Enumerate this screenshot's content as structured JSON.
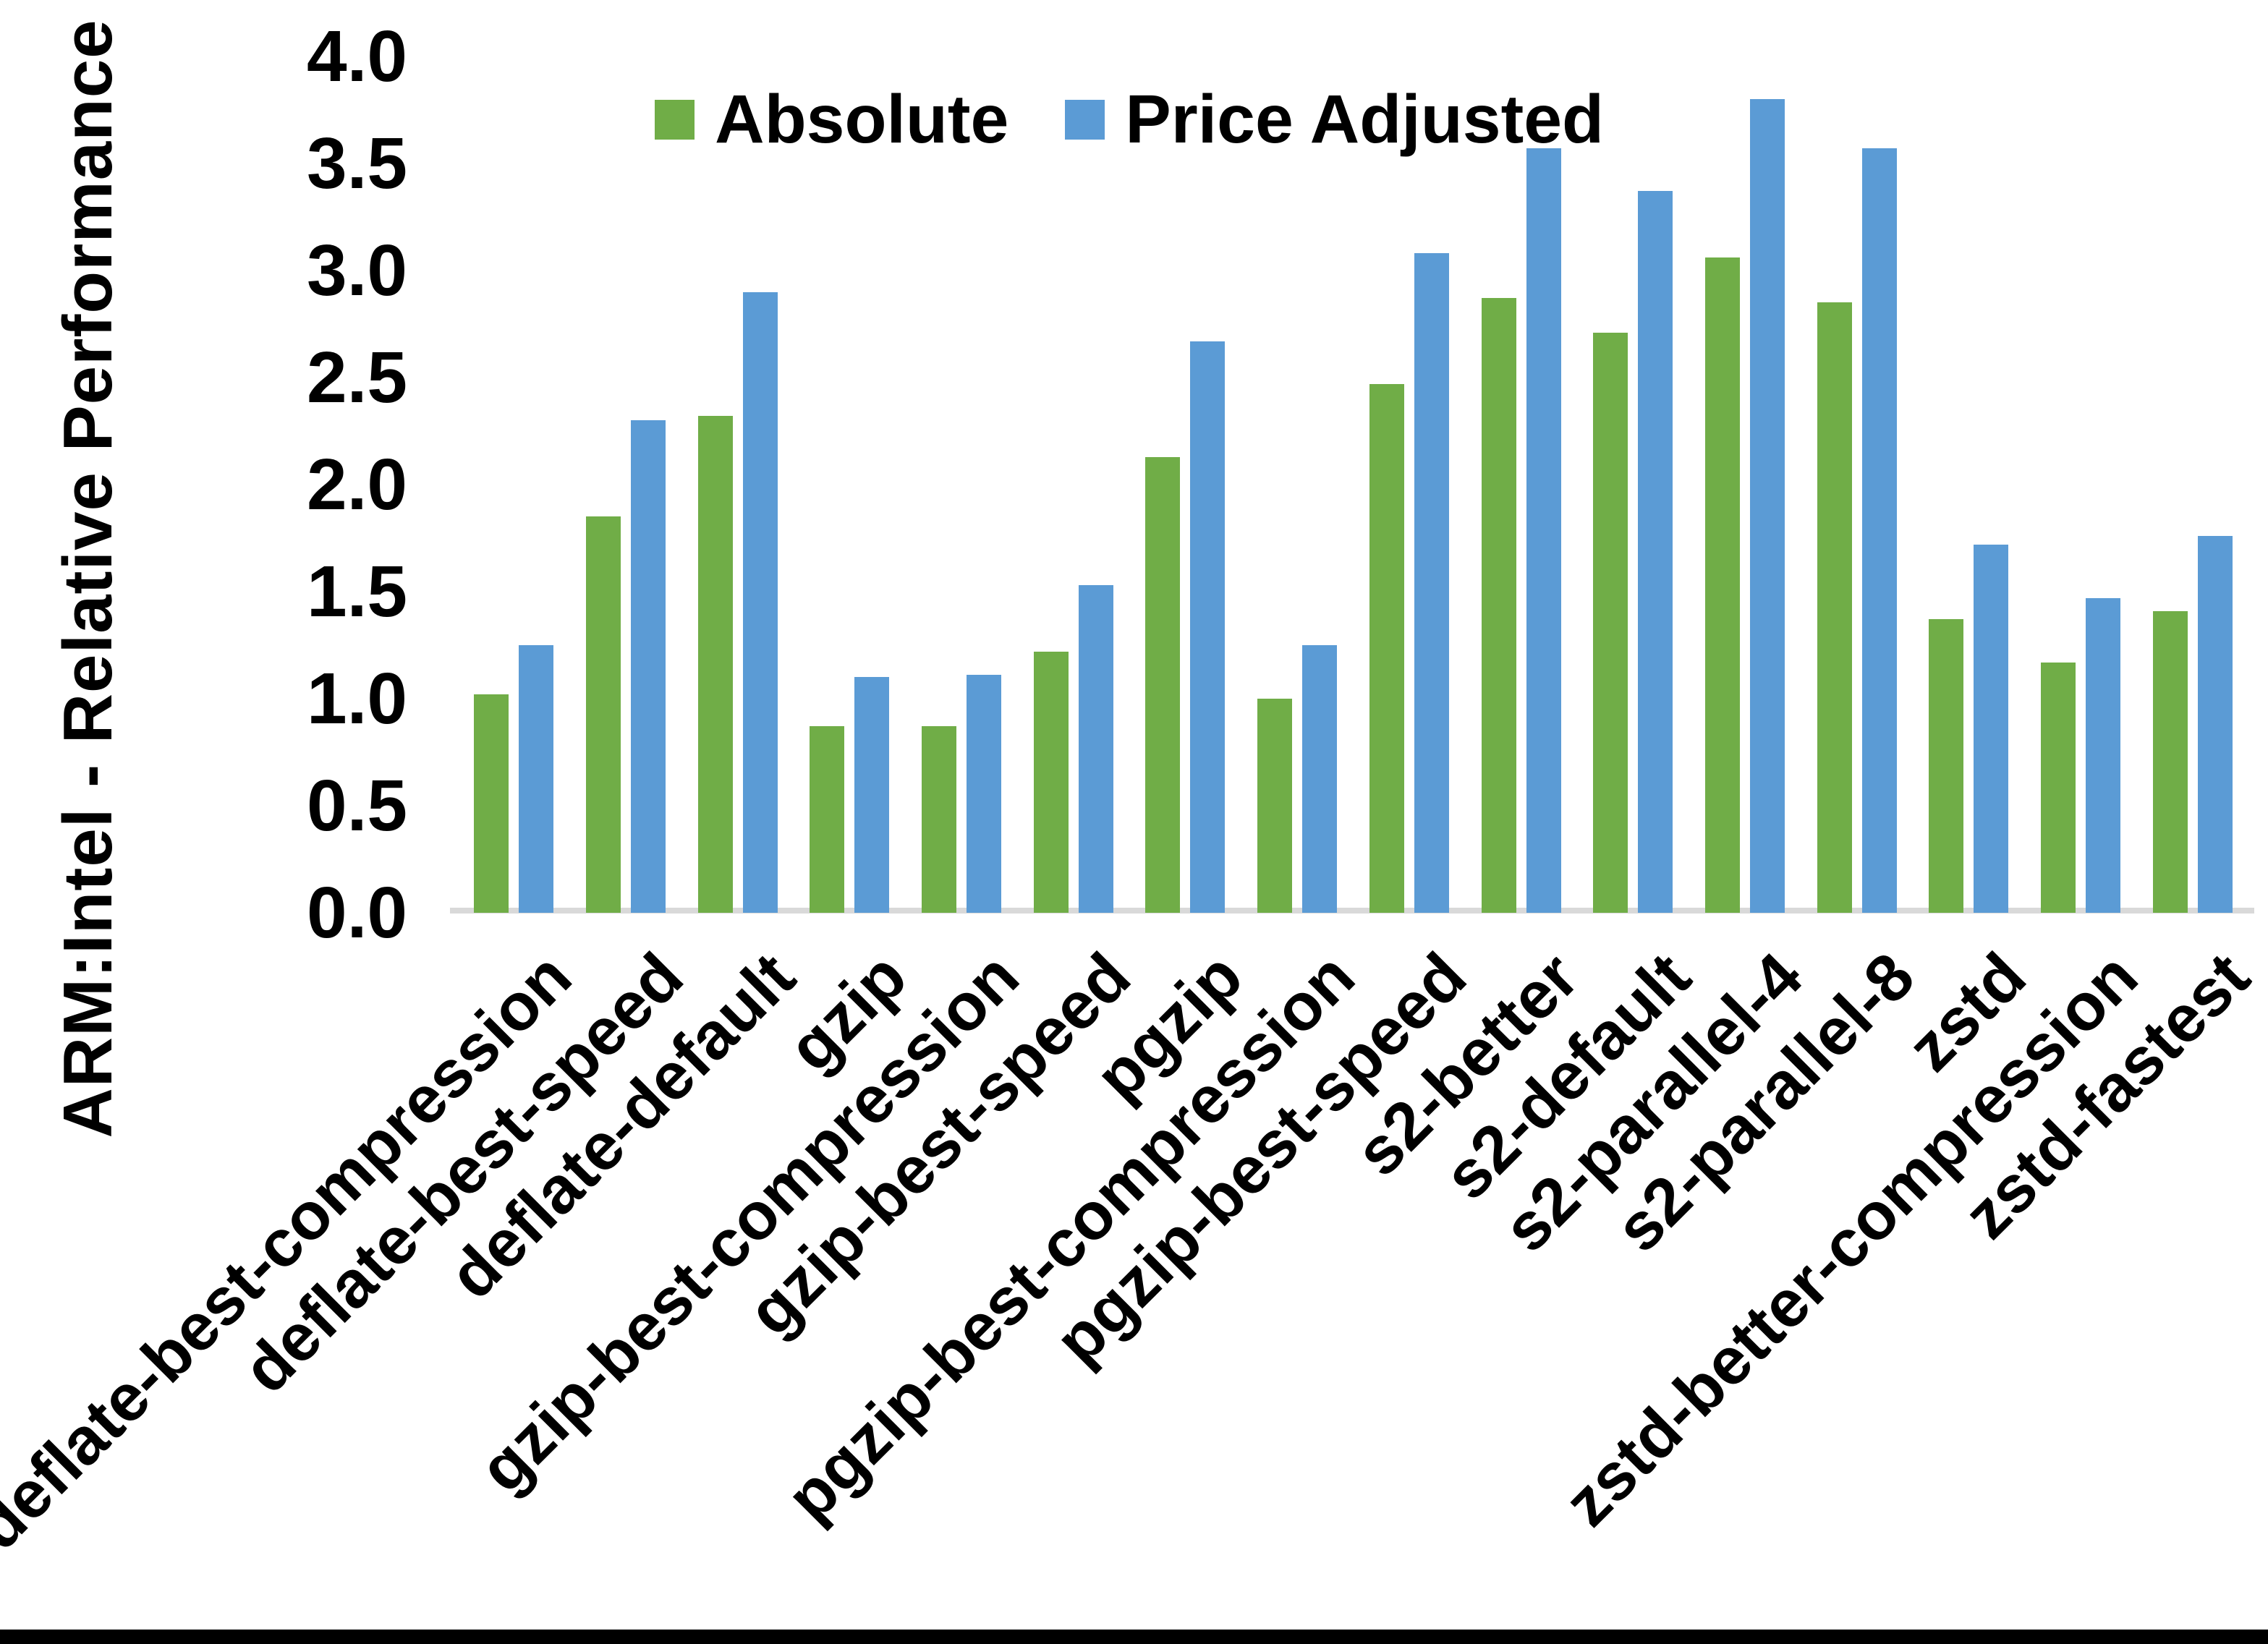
{
  "page": {
    "background": "#ffffff",
    "bottom_border_color": "#000000"
  },
  "chart_data": {
    "type": "bar",
    "title": "",
    "xlabel": "",
    "ylabel": "ARM:Intel - Relative Performance",
    "ylim": [
      0.0,
      4.0
    ],
    "ytick_step": 0.5,
    "ytick_labels": [
      "0.0",
      "0.5",
      "1.0",
      "1.5",
      "2.0",
      "2.5",
      "3.0",
      "3.5",
      "4.0"
    ],
    "grid": false,
    "legend_position": "top-center",
    "axis_line_color": "#d9d9d9",
    "text_color": "#000000",
    "categories": [
      "deflate-best-compression",
      "deflate-best-speed",
      "deflate-default",
      "gzip",
      "gzip-best-compression",
      "gzip-best-speed",
      "pgzip",
      "pgzip-best-compression",
      "pgzip-best-speed",
      "s2-better",
      "s2-default",
      "s2-parallel-4",
      "s2-parallel-8",
      "zstd",
      "zstd-better-compression",
      "zstd-fastest"
    ],
    "series": [
      {
        "name": "Absolute",
        "color": "#70ad47",
        "values": [
          1.02,
          1.85,
          2.32,
          0.87,
          0.87,
          1.22,
          2.13,
          1.0,
          2.47,
          2.87,
          2.71,
          3.06,
          2.85,
          1.37,
          1.17,
          1.41
        ]
      },
      {
        "name": "Price Adjusted",
        "color": "#5b9bd5",
        "values": [
          1.25,
          2.3,
          2.9,
          1.1,
          1.11,
          1.53,
          2.67,
          1.25,
          3.08,
          3.57,
          3.37,
          3.8,
          3.57,
          1.72,
          1.47,
          1.76
        ]
      }
    ]
  }
}
